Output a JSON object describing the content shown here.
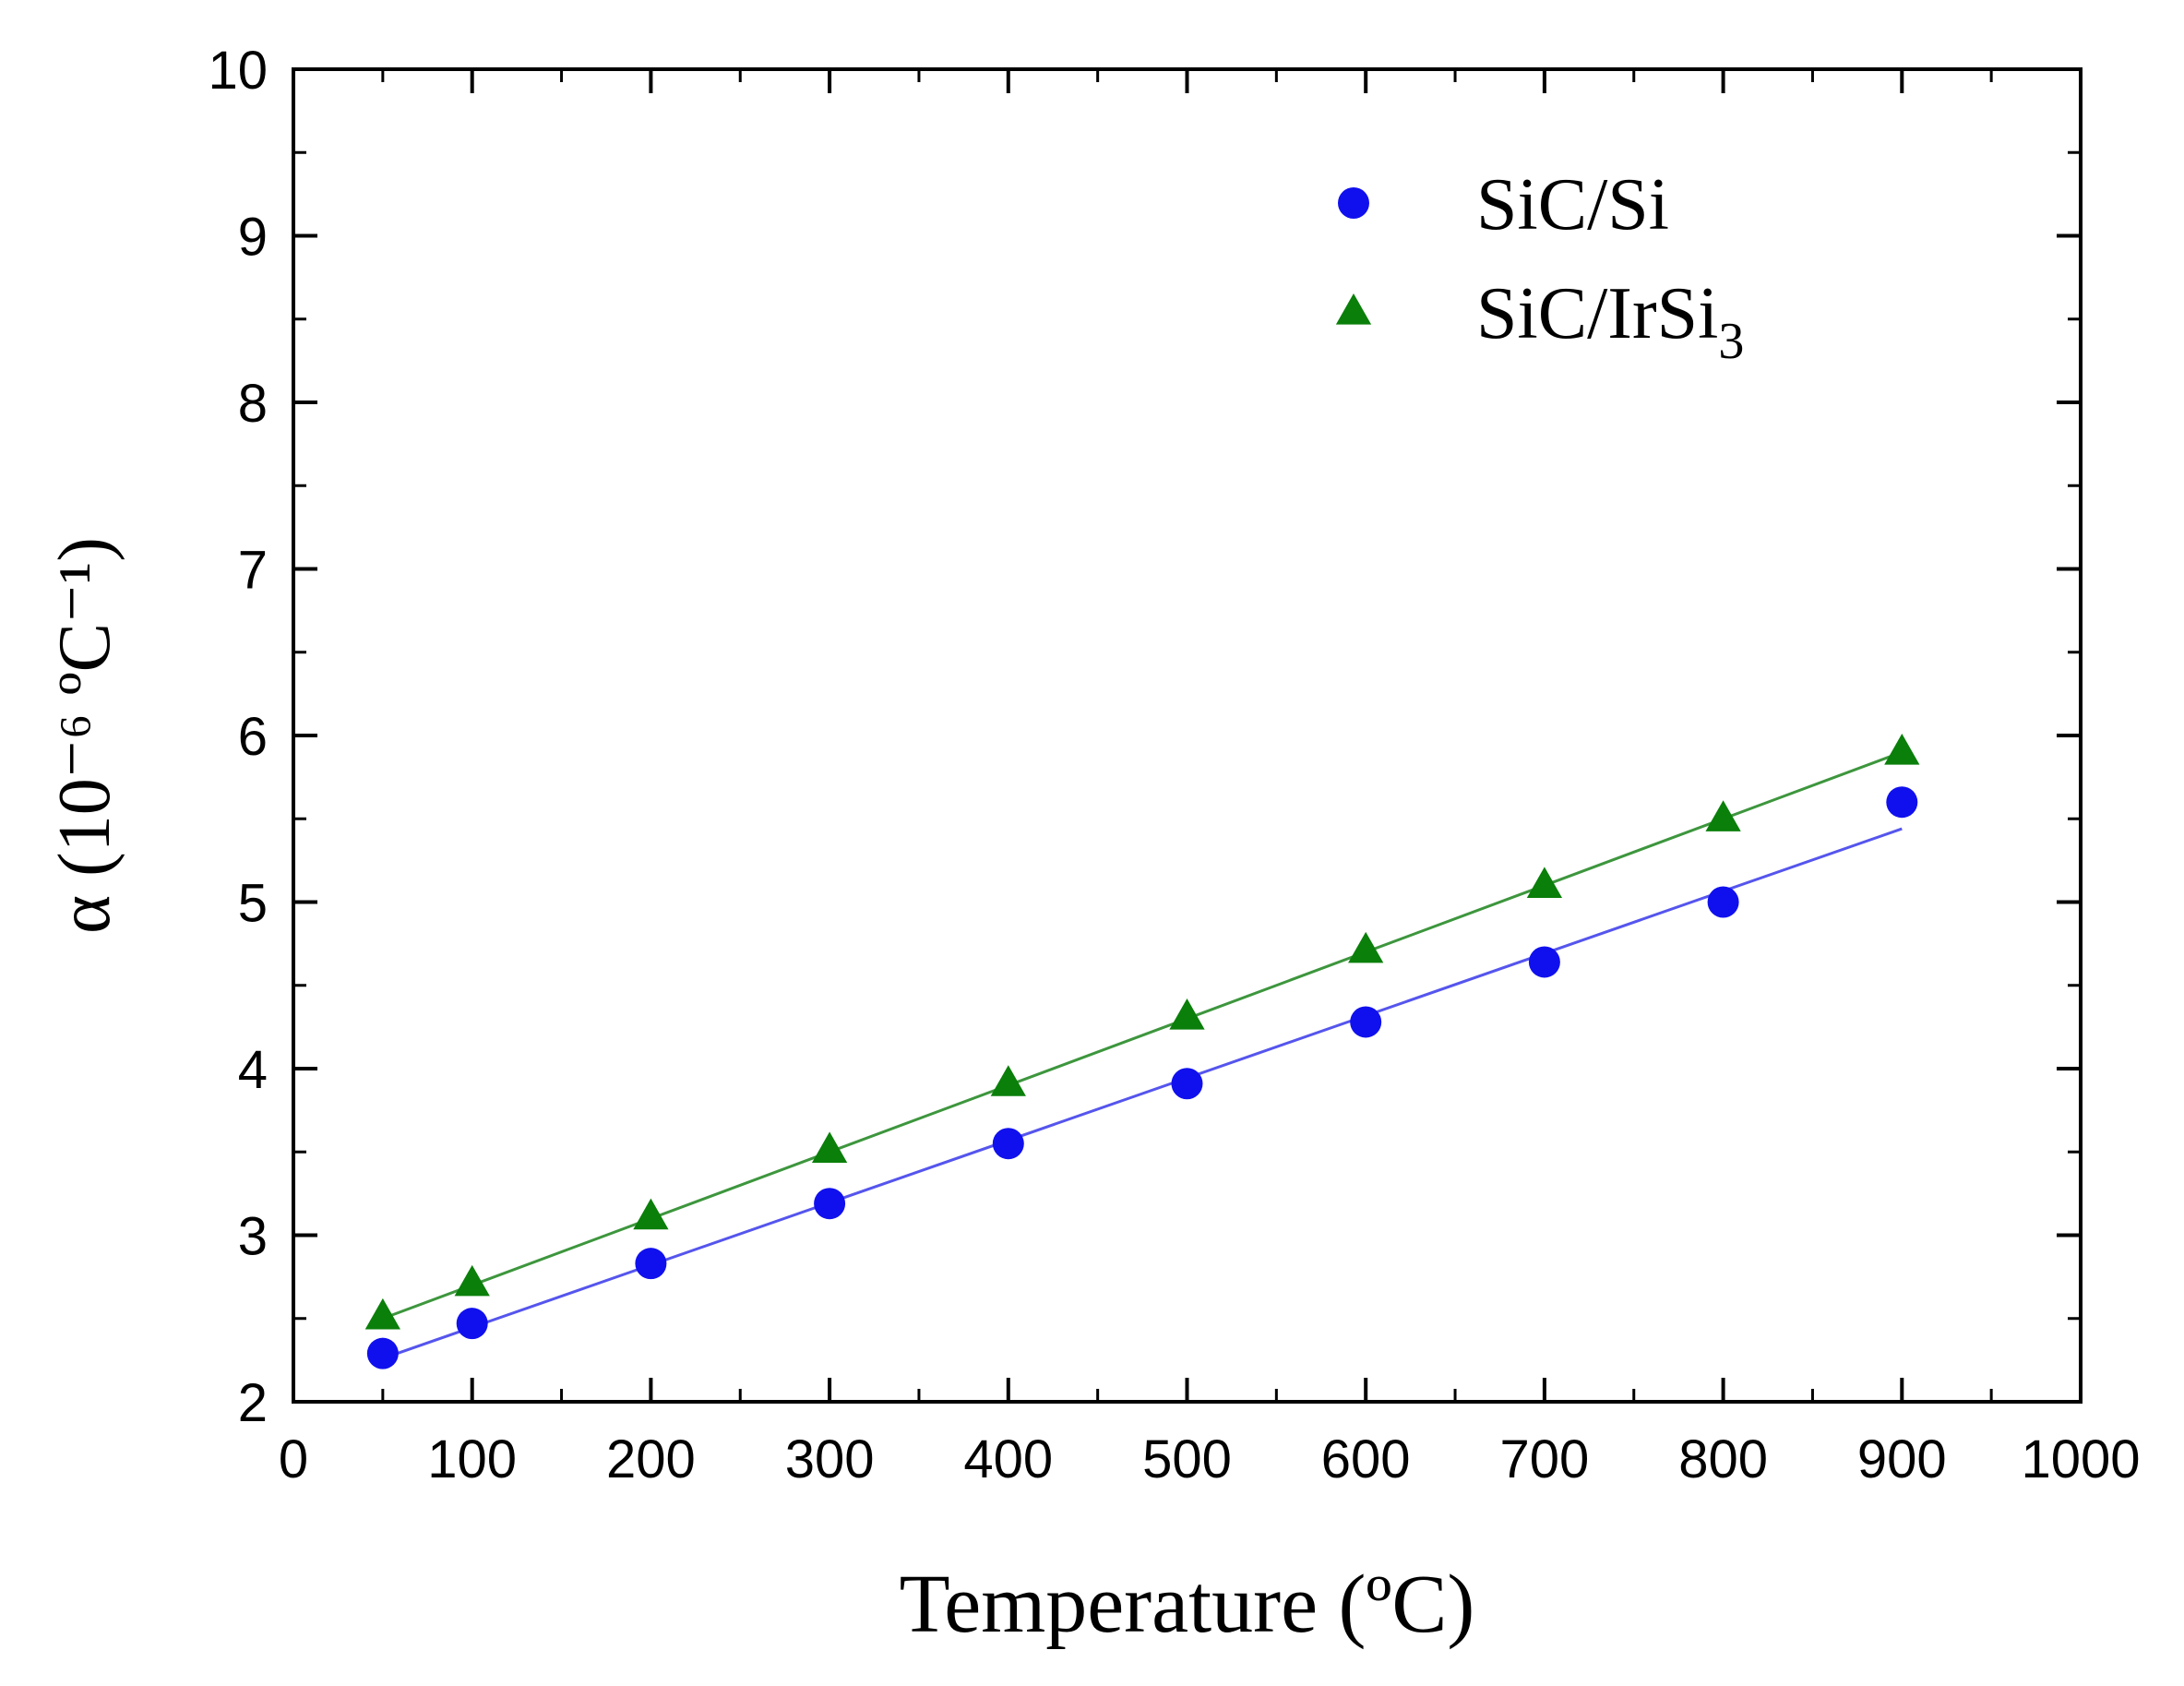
{
  "chart_data": {
    "type": "scatter",
    "title": "",
    "xlabel": "Temperature (ºC)",
    "ylabel": "α (10⁻⁶ ºC⁻¹)",
    "xlim": [
      0,
      1000
    ],
    "ylim": [
      2,
      10
    ],
    "x_ticks": [
      "0",
      "100",
      "200",
      "300",
      "400",
      "500",
      "600",
      "700",
      "800",
      "900",
      "1000"
    ],
    "y_ticks": [
      "2",
      "3",
      "4",
      "5",
      "6",
      "7",
      "8",
      "9",
      "10"
    ],
    "grid": false,
    "legend_position": "top-right",
    "series": [
      {
        "name": "SiC/Si",
        "label_main": "SiC/Si",
        "label_sub": "",
        "marker": "circle",
        "color": "#1010ee",
        "fit_color": "#5555ee",
        "x": [
          50,
          100,
          200,
          300,
          400,
          500,
          600,
          700,
          800,
          900
        ],
        "y": [
          2.29,
          2.47,
          2.83,
          3.19,
          3.55,
          3.91,
          4.28,
          4.64,
          5.0,
          5.6
        ],
        "fit": {
          "x": [
            50,
            900
          ],
          "y": [
            2.26,
            5.44
          ]
        }
      },
      {
        "name": "SiC/IrSi3",
        "label_main": "SiC/IrSi",
        "label_sub": "3",
        "marker": "triangle",
        "color": "#0a7f0a",
        "fit_color": "#3d963d",
        "x": [
          50,
          100,
          200,
          300,
          400,
          500,
          600,
          700,
          800,
          900
        ],
        "y": [
          2.51,
          2.71,
          3.11,
          3.51,
          3.91,
          4.31,
          4.71,
          5.1,
          5.5,
          5.9
        ],
        "fit": {
          "x": [
            50,
            900
          ],
          "y": [
            2.5,
            5.9
          ]
        }
      }
    ]
  }
}
